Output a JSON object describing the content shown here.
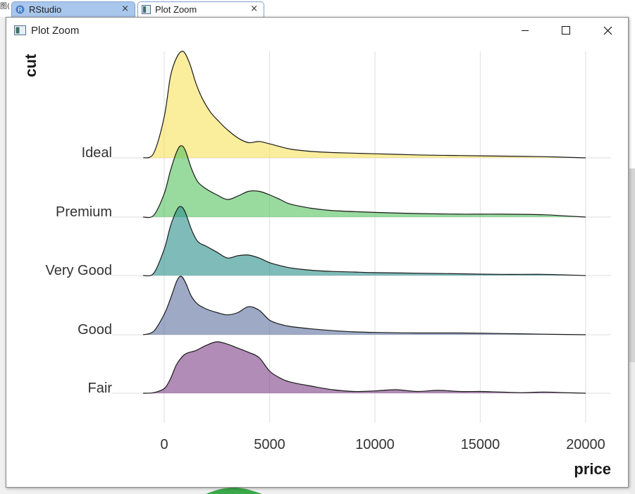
{
  "corner_text": "图(",
  "tabs": [
    {
      "label": "RStudio",
      "close": "×"
    },
    {
      "label": "Plot Zoom",
      "close": "×"
    }
  ],
  "window": {
    "title": "Plot Zoom"
  },
  "chart_data": {
    "type": "area",
    "subtype": "ridgeline-density",
    "xlabel": "price",
    "ylabel": "cut",
    "xlim": [
      -1000,
      21000
    ],
    "xticks": [
      0,
      5000,
      10000,
      15000,
      20000
    ],
    "xtick_labels": [
      "0",
      "5000",
      "10000",
      "15000",
      "20000"
    ],
    "grid": "vertical major lines",
    "categories": [
      "Fair",
      "Good",
      "Very Good",
      "Premium",
      "Ideal"
    ],
    "series": [
      {
        "name": "Fair",
        "color": "#7b3f86",
        "x": [
          -1000,
          -500,
          0,
          300,
          600,
          1000,
          1500,
          2000,
          2500,
          3000,
          3500,
          4000,
          4500,
          5000,
          5500,
          6000,
          7000,
          8000,
          9000,
          10000,
          11000,
          12000,
          13000,
          14000,
          15000,
          16000,
          17000,
          18000,
          19000,
          20000
        ],
        "y": [
          0.0,
          0.01,
          0.08,
          0.25,
          0.5,
          0.67,
          0.73,
          0.82,
          0.88,
          0.84,
          0.77,
          0.7,
          0.61,
          0.38,
          0.26,
          0.19,
          0.12,
          0.06,
          0.03,
          0.04,
          0.06,
          0.03,
          0.05,
          0.03,
          0.03,
          0.02,
          0.01,
          0.02,
          0.01,
          0.0
        ]
      },
      {
        "name": "Good",
        "color": "#5b6f9e",
        "x": [
          -1000,
          -500,
          0,
          300,
          600,
          800,
          1000,
          1300,
          1600,
          2000,
          2500,
          3000,
          3500,
          4000,
          4500,
          5000,
          5500,
          6000,
          7000,
          8000,
          9000,
          10000,
          12000,
          14000,
          16000,
          18000,
          20000
        ],
        "y": [
          0.0,
          0.06,
          0.35,
          0.62,
          0.92,
          1.0,
          0.9,
          0.65,
          0.52,
          0.44,
          0.38,
          0.34,
          0.38,
          0.48,
          0.42,
          0.25,
          0.18,
          0.14,
          0.1,
          0.07,
          0.05,
          0.04,
          0.03,
          0.03,
          0.02,
          0.01,
          0.0
        ]
      },
      {
        "name": "Very Good",
        "color": "#2a8f8a",
        "x": [
          -1000,
          -500,
          0,
          300,
          600,
          800,
          1000,
          1300,
          1600,
          2000,
          2500,
          3000,
          3500,
          4000,
          4500,
          5000,
          5500,
          6000,
          7000,
          8000,
          9000,
          10000,
          12000,
          14000,
          16000,
          18000,
          20000
        ],
        "y": [
          0.0,
          0.04,
          0.45,
          0.85,
          1.12,
          1.18,
          1.08,
          0.78,
          0.58,
          0.5,
          0.4,
          0.3,
          0.34,
          0.35,
          0.3,
          0.22,
          0.17,
          0.13,
          0.09,
          0.07,
          0.06,
          0.05,
          0.04,
          0.03,
          0.02,
          0.02,
          0.0
        ]
      },
      {
        "name": "Premium",
        "color": "#55c25e",
        "x": [
          -1000,
          -500,
          0,
          300,
          600,
          800,
          1000,
          1300,
          1600,
          2000,
          2500,
          3000,
          3500,
          4000,
          4500,
          5000,
          5500,
          6000,
          7000,
          8000,
          10000,
          12000,
          14000,
          16000,
          18000,
          19000,
          20000
        ],
        "y": [
          0.0,
          0.03,
          0.4,
          0.8,
          1.12,
          1.22,
          1.14,
          0.82,
          0.6,
          0.48,
          0.38,
          0.3,
          0.36,
          0.44,
          0.44,
          0.38,
          0.3,
          0.22,
          0.15,
          0.11,
          0.08,
          0.06,
          0.05,
          0.05,
          0.04,
          0.02,
          0.0
        ]
      },
      {
        "name": "Ideal",
        "color": "#f7e15a",
        "x": [
          -1000,
          -500,
          0,
          300,
          600,
          900,
          1200,
          1500,
          1800,
          2200,
          2600,
          3000,
          3500,
          4000,
          4500,
          5000,
          6000,
          7000,
          8000,
          10000,
          12000,
          14000,
          16000,
          18000,
          20000
        ],
        "y": [
          0.0,
          0.08,
          0.7,
          1.4,
          1.72,
          1.82,
          1.62,
          1.28,
          1.02,
          0.78,
          0.62,
          0.48,
          0.34,
          0.26,
          0.28,
          0.24,
          0.15,
          0.11,
          0.09,
          0.07,
          0.05,
          0.04,
          0.03,
          0.02,
          0.0
        ]
      }
    ]
  }
}
